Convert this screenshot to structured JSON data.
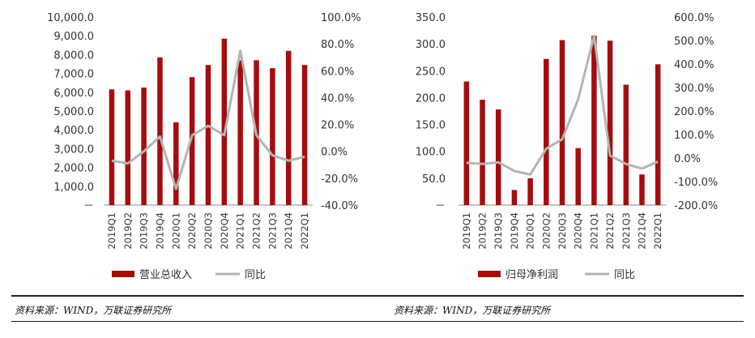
{
  "colors": {
    "bar": "#a50d0d",
    "line": "#b4b4b4",
    "axis": "#888888",
    "text": "#333333"
  },
  "sources": {
    "left": "资料来源：WIND，万联证券研究所",
    "right": "资料来源：WIND，万联证券研究所"
  },
  "chart_data": [
    {
      "type": "bar",
      "categories": [
        "2019Q1",
        "2019Q2",
        "2019Q3",
        "2019Q4",
        "2020Q1",
        "2020Q2",
        "2020Q3",
        "2020Q4",
        "2021Q1",
        "2021Q2",
        "2021Q3",
        "2021Q4",
        "2022Q1"
      ],
      "series": [
        {
          "name": "营业总收入",
          "kind": "bar",
          "axis": "left",
          "values": [
            6150,
            6100,
            6250,
            7850,
            4400,
            6800,
            7450,
            8850,
            7700,
            7700,
            7280,
            8200,
            7450
          ]
        },
        {
          "name": "同比",
          "kind": "line",
          "axis": "right",
          "values": [
            -7,
            -9,
            0,
            11,
            -28,
            12,
            19,
            12,
            75,
            12,
            -3,
            -7,
            -4
          ]
        }
      ],
      "y_left": {
        "min": 0,
        "max": 10000,
        "step": 1000,
        "tick_labels": [
          "－",
          "1,000.0",
          "2,000.0",
          "3,000.0",
          "4,000.0",
          "5,000.0",
          "6,000.0",
          "7,000.0",
          "8,000.0",
          "9,000.0",
          "10,000.0"
        ]
      },
      "y_right": {
        "min": -40,
        "max": 100,
        "step": 20,
        "tick_labels": [
          "-40.0%",
          "-20.0%",
          "0.0%",
          "20.0%",
          "40.0%",
          "60.0%",
          "80.0%",
          "100.0%"
        ]
      },
      "legend": {
        "placement": "bottom",
        "items": [
          "营业总收入",
          "同比"
        ]
      },
      "grid": false
    },
    {
      "type": "bar",
      "categories": [
        "2019Q1",
        "2019Q2",
        "2019Q3",
        "2019Q4",
        "2020Q1",
        "2020Q2",
        "2020Q3",
        "2020Q4",
        "2021Q1",
        "2021Q2",
        "2021Q3",
        "2021Q4",
        "2022Q1"
      ],
      "series": [
        {
          "name": "归母净利润",
          "kind": "bar",
          "axis": "left",
          "values": [
            230,
            196,
            178,
            28,
            50,
            272,
            307,
            106,
            315,
            306,
            224,
            57,
            262
          ]
        },
        {
          "name": "同比",
          "kind": "line",
          "axis": "right",
          "values": [
            -20,
            -25,
            -18,
            -55,
            -70,
            40,
            80,
            250,
            520,
            10,
            -25,
            -45,
            -15
          ]
        }
      ],
      "y_left": {
        "min": 0,
        "max": 350,
        "step": 50,
        "tick_labels": [
          "－",
          "50.0",
          "100.0",
          "150.0",
          "200.0",
          "250.0",
          "300.0",
          "350.0"
        ]
      },
      "y_right": {
        "min": -200,
        "max": 600,
        "step": 100,
        "tick_labels": [
          "-200.0%",
          "-100.0%",
          "0.0%",
          "100.0%",
          "200.0%",
          "300.0%",
          "400.0%",
          "500.0%",
          "600.0%"
        ]
      },
      "legend": {
        "placement": "bottom",
        "items": [
          "归母净利润",
          "同比"
        ]
      },
      "grid": false
    }
  ]
}
